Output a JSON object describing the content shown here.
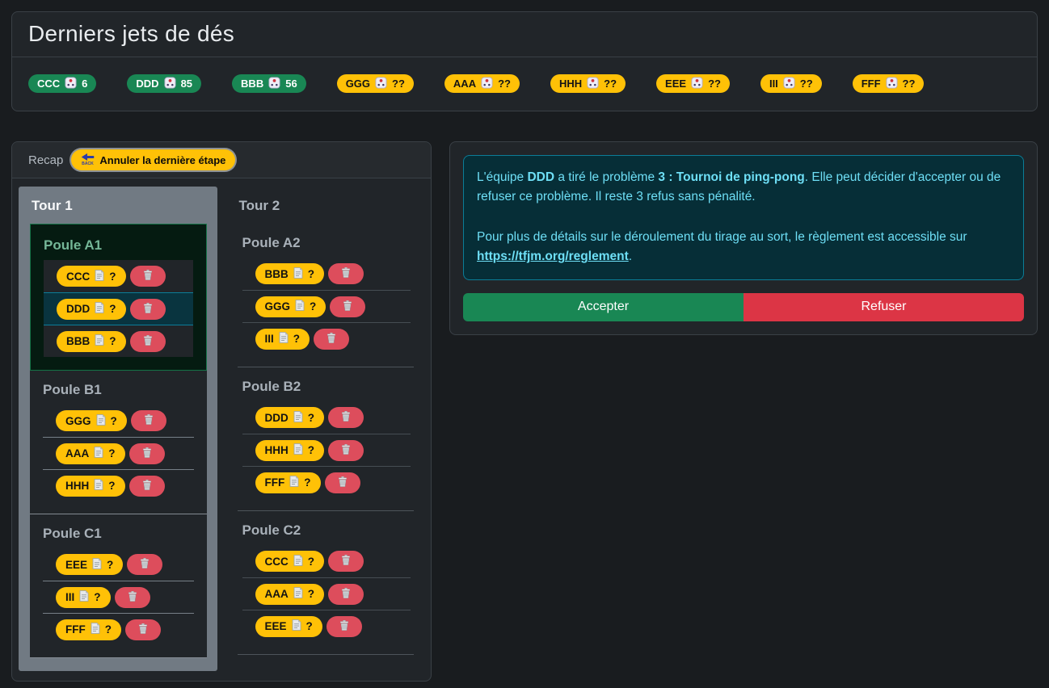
{
  "dice_panel": {
    "title": "Derniers jets de dés",
    "badges": [
      {
        "team": "CCC",
        "value": "6",
        "state": "rolled",
        "icon": "dice-icon"
      },
      {
        "team": "DDD",
        "value": "85",
        "state": "rolled",
        "icon": "dice-icon"
      },
      {
        "team": "BBB",
        "value": "56",
        "state": "rolled",
        "icon": "dice-icon"
      },
      {
        "team": "GGG",
        "value": "??",
        "state": "pending",
        "icon": "dice-icon"
      },
      {
        "team": "AAA",
        "value": "??",
        "state": "pending",
        "icon": "dice-icon"
      },
      {
        "team": "HHH",
        "value": "??",
        "state": "pending",
        "icon": "dice-icon"
      },
      {
        "team": "EEE",
        "value": "??",
        "state": "pending",
        "icon": "dice-icon"
      },
      {
        "team": "III",
        "value": "??",
        "state": "pending",
        "icon": "dice-icon"
      },
      {
        "team": "FFF",
        "value": "??",
        "state": "pending",
        "icon": "dice-icon"
      }
    ]
  },
  "recap_panel": {
    "title": "Recap",
    "undo_button": {
      "icon": "back-icon",
      "label": "Annuler la dernière étape"
    },
    "problem_placeholder": "?",
    "row_icons": {
      "problem": "document-icon",
      "remove": "trash-icon"
    },
    "tours": [
      {
        "label": "Tour 1",
        "active": true,
        "poules": [
          {
            "label": "Poule A1",
            "active": true,
            "teams": [
              {
                "name": "CCC"
              },
              {
                "name": "DDD",
                "active": true
              },
              {
                "name": "BBB"
              }
            ]
          },
          {
            "label": "Poule B1",
            "teams": [
              {
                "name": "GGG"
              },
              {
                "name": "AAA"
              },
              {
                "name": "HHH"
              }
            ]
          },
          {
            "label": "Poule C1",
            "teams": [
              {
                "name": "EEE"
              },
              {
                "name": "III"
              },
              {
                "name": "FFF"
              }
            ]
          }
        ]
      },
      {
        "label": "Tour 2",
        "active": false,
        "poules": [
          {
            "label": "Poule A2",
            "teams": [
              {
                "name": "BBB"
              },
              {
                "name": "GGG"
              },
              {
                "name": "III"
              }
            ]
          },
          {
            "label": "Poule B2",
            "teams": [
              {
                "name": "DDD"
              },
              {
                "name": "HHH"
              },
              {
                "name": "FFF"
              }
            ]
          },
          {
            "label": "Poule C2",
            "teams": [
              {
                "name": "CCC"
              },
              {
                "name": "AAA"
              },
              {
                "name": "EEE"
              }
            ]
          }
        ]
      }
    ]
  },
  "decision_panel": {
    "alert": {
      "paragraphs": [
        [
          {
            "text": "L'équipe "
          },
          {
            "text": "DDD",
            "bold": true
          },
          {
            "text": " a tiré le problème "
          },
          {
            "text": "3 : Tournoi de ping-pong",
            "bold": true
          },
          {
            "text": ". Elle peut décider d'accepter ou de refuser ce problème. Il reste 3 refus sans pénalité."
          }
        ],
        [
          {
            "text": "Pour plus de détails sur le déroulement du tirage au sort, le règlement est accessible sur "
          },
          {
            "text": "https://tfjm.org/reglement",
            "link": true
          },
          {
            "text": "."
          }
        ]
      ]
    },
    "accept_label": "Accepter",
    "refuse_label": "Refuser"
  },
  "colors": {
    "success": "#198754",
    "warning": "#ffc107",
    "danger": "#dc3545",
    "tour_active_bg": "#717a83",
    "poule_active_bg": "#051b11",
    "poule_active_border": "#157347",
    "row_active_bg": "#09343f",
    "alert_bg": "#062e37",
    "alert_border": "#0b7d97",
    "alert_text": "#6edff6"
  }
}
